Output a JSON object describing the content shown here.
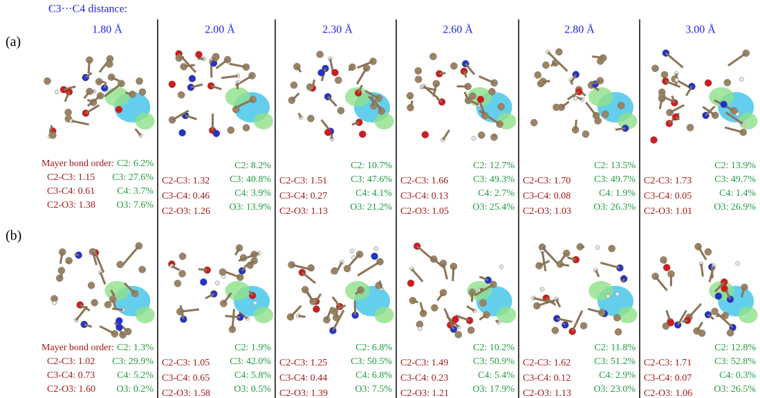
{
  "header": {
    "title": "C3···C4 distance:"
  },
  "distances": [
    "1.80 Å",
    "2.00 Å",
    "2.30 Å",
    "2.60 Å",
    "2.80 Å",
    "3.00 Å"
  ],
  "rows": [
    {
      "label": "(a)",
      "mayer_label": "Mayer bond order:",
      "columns": [
        {
          "bonds": [
            "C2-C3: 1.15",
            "C3-C4: 0.61",
            "C2-O3: 1.38"
          ],
          "contributions": [
            "C2: 6.2%",
            "C3: 27.6%",
            "C4: 3.7%",
            "O3: 7.6%"
          ]
        },
        {
          "bonds": [
            "C2-C3: 1.32",
            "C3-C4: 0.46",
            "C2-O3: 1.26"
          ],
          "contributions": [
            "C2: 8.2%",
            "C3: 40.8%",
            "C4: 3.9%",
            "O3: 13.9%"
          ]
        },
        {
          "bonds": [
            "C2-C3: 1.51",
            "C3-C4: 0.27",
            "C2-O3: 1.13"
          ],
          "contributions": [
            "C2: 10.7%",
            "C3: 47.6%",
            "C4: 4.1%",
            "O3: 21.2%"
          ]
        },
        {
          "bonds": [
            "C2-C3: 1.66",
            "C3-C4: 0.13",
            "C2-O3: 1.05"
          ],
          "contributions": [
            "C2: 12.7%",
            "C3: 49.3%",
            "C4: 2.7%",
            "O3: 25.4%"
          ]
        },
        {
          "bonds": [
            "C2-C3: 1.70",
            "C3-C4: 0.08",
            "C2-O3: 1.03"
          ],
          "contributions": [
            "C2: 13.5%",
            "C3: 49.7%",
            "C4: 1.9%",
            "O3: 26.3%"
          ]
        },
        {
          "bonds": [
            "C2-C3: 1.73",
            "C3-C4: 0.05",
            "C2-O3: 1.01"
          ],
          "contributions": [
            "C2: 13.9%",
            "C3: 49.7%",
            "C4: 1.4%",
            "O3: 26.9%"
          ]
        }
      ]
    },
    {
      "label": "(b)",
      "mayer_label": "Mayer bond order:",
      "columns": [
        {
          "bonds": [
            "C2-C3: 1.02",
            "C3-C4: 0.73",
            "C2-O3: 1.60"
          ],
          "contributions": [
            "C2: 1.3%",
            "C3: 29.9%",
            "C4: 5.2%",
            "O3: 0.2%"
          ]
        },
        {
          "bonds": [
            "C2-C3: 1.05",
            "C3-C4: 0.65",
            "C2-O3: 1.58"
          ],
          "contributions": [
            "C2: 1.9%",
            "C3: 42.0%",
            "C4: 5.8%",
            "O3: 0.5%"
          ]
        },
        {
          "bonds": [
            "C2-C3: 1.25",
            "C3-C4: 0.44",
            "C2-O3: 1.39"
          ],
          "contributions": [
            "C2: 6.8%",
            "C3: 50.5%",
            "C4: 6.8%",
            "O3: 7.5%"
          ]
        },
        {
          "bonds": [
            "C2-C3: 1.49",
            "C3-C4: 0.23",
            "C2-O3: 1.21"
          ],
          "contributions": [
            "C2: 10.2%",
            "C3: 50.9%",
            "C4: 5.4%",
            "O3: 17.9%"
          ]
        },
        {
          "bonds": [
            "C2-C3: 1.62",
            "C3-C4: 0.12",
            "C2-O3: 1.13"
          ],
          "contributions": [
            "C2: 11.8%",
            "C3: 51.2%",
            "C4: 2.9%",
            "O3: 23.0%"
          ]
        },
        {
          "bonds": [
            "C2-C3: 1.71",
            "C3-C4: 0.07",
            "C2-O3: 1.06"
          ],
          "contributions": [
            "C2: 12.8%",
            "C3: 52.8%",
            "C4: 0.3%",
            "O3: 26.5%"
          ]
        }
      ]
    }
  ]
}
